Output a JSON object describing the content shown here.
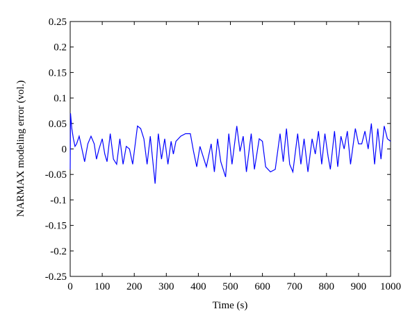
{
  "chart_data": {
    "type": "line",
    "xlabel": "Time (s)",
    "ylabel": "NARMAX modeling error (vol.)",
    "xlim": [
      0,
      1000
    ],
    "xticks": [
      0,
      100,
      200,
      300,
      400,
      500,
      600,
      700,
      800,
      900,
      1000
    ],
    "ylim": [
      -0.25,
      0.25
    ],
    "yticks": [
      0.25,
      0.2,
      0.15,
      0.1,
      0.05,
      0,
      -0.05,
      -0.1,
      -0.15,
      -0.2,
      -0.25
    ],
    "series": [
      {
        "color": "#0000ff",
        "x": [
          0,
          1,
          5,
          10,
          15,
          20,
          28,
          35,
          45,
          55,
          65,
          75,
          82,
          90,
          100,
          108,
          115,
          125,
          135,
          145,
          155,
          165,
          175,
          185,
          195,
          210,
          220,
          230,
          240,
          250,
          265,
          275,
          285,
          295,
          305,
          315,
          322,
          330,
          345,
          360,
          375,
          385,
          395,
          405,
          415,
          425,
          440,
          450,
          460,
          470,
          485,
          495,
          505,
          520,
          530,
          540,
          550,
          565,
          575,
          590,
          600,
          610,
          625,
          640,
          655,
          665,
          675,
          685,
          695,
          710,
          720,
          730,
          742,
          755,
          765,
          775,
          785,
          795,
          805,
          812,
          825,
          835,
          845,
          855,
          865,
          875,
          890,
          900,
          910,
          920,
          930,
          940,
          950,
          960,
          970,
          980,
          990,
          1000
        ],
        "values": [
          -0.04,
          0.07,
          0.04,
          0.02,
          0.005,
          0.01,
          0.025,
          0.005,
          -0.025,
          0.01,
          0.025,
          0.01,
          -0.02,
          0,
          0.02,
          -0.01,
          -0.025,
          0.03,
          -0.02,
          -0.03,
          0.02,
          -0.03,
          0.005,
          0,
          -0.03,
          0.045,
          0.04,
          0.02,
          -0.03,
          0.025,
          -0.068,
          0.03,
          -0.02,
          0.02,
          -0.03,
          0.015,
          -0.01,
          0.015,
          0.025,
          0.03,
          0.03,
          -0.005,
          -0.035,
          0.005,
          -0.015,
          -0.035,
          0.01,
          -0.045,
          0.02,
          -0.025,
          -0.055,
          0.03,
          -0.03,
          0.045,
          -0.005,
          0.025,
          -0.045,
          0.03,
          -0.04,
          0.02,
          0.015,
          -0.035,
          -0.045,
          -0.04,
          0.03,
          -0.025,
          0.04,
          -0.03,
          -0.045,
          0.03,
          -0.03,
          0.02,
          -0.045,
          0.02,
          -0.01,
          0.035,
          -0.03,
          0.03,
          -0.015,
          -0.04,
          0.035,
          -0.035,
          0.025,
          0,
          0.035,
          -0.03,
          0.04,
          0.01,
          0.01,
          0.035,
          0,
          0.05,
          -0.03,
          0.04,
          -0.02,
          0.045,
          0.02,
          0.015
        ]
      }
    ]
  }
}
